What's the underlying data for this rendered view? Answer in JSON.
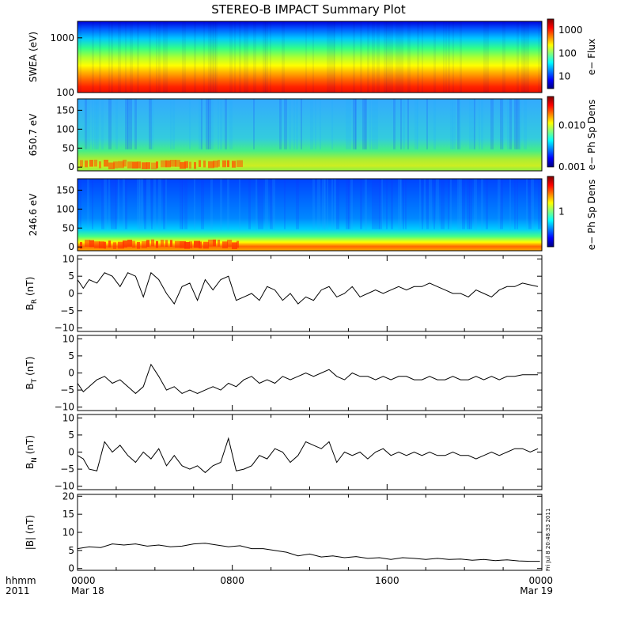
{
  "chart_data": {
    "type": "line",
    "title": "STEREO-B IMPACT Summary Plot",
    "x_label_top": "hhmm",
    "x_label_bottom": "2011",
    "x_range_hours": [
      0,
      24
    ],
    "x_ticks": [
      {
        "hour": 0,
        "label": "0000",
        "date": "Mar 18"
      },
      {
        "hour": 8,
        "label": "0800",
        "date": ""
      },
      {
        "hour": 16,
        "label": "1600",
        "date": ""
      },
      {
        "hour": 24,
        "label": "0000",
        "date": "Mar 19"
      }
    ],
    "timestamp": "Fri Jul  8 20:48:33 2011",
    "spectrograms": [
      {
        "ylabel": "SWEA (eV)",
        "y_scale": "log",
        "y_range": [
          100,
          2000
        ],
        "y_ticks": [
          {
            "value": 100,
            "label": "100"
          },
          {
            "value": 1000,
            "label": "1000"
          }
        ],
        "colorbar_label": "e− Flux",
        "colorbar_scale": "log",
        "colorbar_range": [
          3,
          3000
        ],
        "colorbar_ticks": [
          {
            "value": 10,
            "label": "10"
          },
          {
            "value": 100,
            "label": "100"
          },
          {
            "value": 1000,
            "label": "1000"
          }
        ]
      },
      {
        "ylabel": "650.7 eV",
        "y_scale": "linear",
        "y_range": [
          -10,
          180
        ],
        "y_ticks": [
          {
            "value": 0,
            "label": "0"
          },
          {
            "value": 50,
            "label": "50"
          },
          {
            "value": 100,
            "label": "100"
          },
          {
            "value": 150,
            "label": "150"
          }
        ],
        "colorbar_label": "e− Ph Sp Dens",
        "colorbar_scale": "log",
        "colorbar_range": [
          0.001,
          0.05
        ],
        "colorbar_ticks": [
          {
            "value": 0.001,
            "label": "0.001"
          },
          {
            "value": 0.01,
            "label": "0.010"
          }
        ]
      },
      {
        "ylabel": "246.6 eV",
        "y_scale": "linear",
        "y_range": [
          -10,
          180
        ],
        "y_ticks": [
          {
            "value": 0,
            "label": "0"
          },
          {
            "value": 50,
            "label": "50"
          },
          {
            "value": 100,
            "label": "100"
          },
          {
            "value": 150,
            "label": "150"
          }
        ],
        "colorbar_label": "e− Ph Sp Dens",
        "colorbar_scale": "log",
        "colorbar_range": [
          0.1,
          10
        ],
        "colorbar_ticks": [
          {
            "value": 1,
            "label": "1"
          }
        ]
      }
    ],
    "line_panels": [
      {
        "name": "BR",
        "label_main": "B",
        "label_sub": "R",
        "label_unit": " (nT)",
        "y_range": [
          -11,
          11
        ],
        "y_ticks": [
          {
            "value": -10,
            "label": "−10"
          },
          {
            "value": -5,
            "label": "−5"
          },
          {
            "value": 0,
            "label": "0"
          },
          {
            "value": 5,
            "label": "5"
          },
          {
            "value": 10,
            "label": "10"
          }
        ],
        "x": [
          0,
          0.3,
          0.6,
          1,
          1.4,
          1.8,
          2.2,
          2.6,
          3,
          3.4,
          3.8,
          4.2,
          4.6,
          5,
          5.4,
          5.8,
          6.2,
          6.6,
          7,
          7.4,
          7.8,
          8.2,
          8.6,
          9,
          9.4,
          9.8,
          10.2,
          10.6,
          11,
          11.4,
          11.8,
          12.2,
          12.6,
          13,
          13.4,
          13.8,
          14.2,
          14.6,
          15,
          15.4,
          15.8,
          16.2,
          16.6,
          17,
          17.4,
          17.8,
          18.2,
          18.6,
          19,
          19.4,
          19.8,
          20.2,
          20.6,
          21,
          21.4,
          21.8,
          22.2,
          22.6,
          23,
          23.4,
          23.8
        ],
        "values": [
          4,
          1.5,
          4,
          3,
          6,
          5,
          2,
          6,
          5,
          -1,
          6,
          4,
          0,
          -3,
          2,
          3,
          -2,
          4,
          1,
          4,
          5,
          -2,
          -1,
          0,
          -2,
          2,
          1,
          -2,
          0,
          -3,
          -1,
          -2,
          1,
          2,
          -1,
          0,
          2,
          -1,
          0,
          1,
          0,
          1,
          2,
          1,
          2,
          2,
          3,
          2,
          1,
          0,
          0,
          -1,
          1,
          0,
          -1,
          1,
          2,
          2,
          3,
          2.5,
          2
        ]
      },
      {
        "name": "BT",
        "label_main": "B",
        "label_sub": "T",
        "label_unit": " (nT)",
        "y_range": [
          -11,
          11
        ],
        "y_ticks": [
          {
            "value": -10,
            "label": "−10"
          },
          {
            "value": -5,
            "label": "−5"
          },
          {
            "value": 0,
            "label": "0"
          },
          {
            "value": 5,
            "label": "5"
          },
          {
            "value": 10,
            "label": "10"
          }
        ],
        "x": [
          0,
          0.3,
          0.6,
          1,
          1.4,
          1.8,
          2.2,
          2.6,
          3,
          3.4,
          3.8,
          4.2,
          4.6,
          5,
          5.4,
          5.8,
          6.2,
          6.6,
          7,
          7.4,
          7.8,
          8.2,
          8.6,
          9,
          9.4,
          9.8,
          10.2,
          10.6,
          11,
          11.4,
          11.8,
          12.2,
          12.6,
          13,
          13.4,
          13.8,
          14.2,
          14.6,
          15,
          15.4,
          15.8,
          16.2,
          16.6,
          17,
          17.4,
          17.8,
          18.2,
          18.6,
          19,
          19.4,
          19.8,
          20.2,
          20.6,
          21,
          21.4,
          21.8,
          22.2,
          22.6,
          23,
          23.4,
          23.8
        ],
        "values": [
          -3,
          -5.5,
          -4,
          -2,
          -1,
          -3,
          -2,
          -4,
          -6,
          -4,
          2.5,
          -1,
          -5,
          -4,
          -6,
          -5,
          -6,
          -5,
          -4,
          -5,
          -3,
          -4,
          -2,
          -1,
          -3,
          -2,
          -3,
          -1,
          -2,
          -1,
          0,
          -1,
          0,
          1,
          -1,
          -2,
          0,
          -1,
          -1,
          -2,
          -1,
          -2,
          -1,
          -1,
          -2,
          -2,
          -1,
          -2,
          -2,
          -1,
          -2,
          -2,
          -1,
          -2,
          -1,
          -2,
          -1,
          -1,
          -0.5,
          -0.5,
          -0.5
        ]
      },
      {
        "name": "BN",
        "label_main": "B",
        "label_sub": "N",
        "label_unit": " (nT)",
        "y_range": [
          -11,
          11
        ],
        "y_ticks": [
          {
            "value": -10,
            "label": "−10"
          },
          {
            "value": -5,
            "label": "−5"
          },
          {
            "value": 0,
            "label": "0"
          },
          {
            "value": 5,
            "label": "5"
          },
          {
            "value": 10,
            "label": "10"
          }
        ],
        "x": [
          0,
          0.3,
          0.6,
          1,
          1.4,
          1.8,
          2.2,
          2.6,
          3,
          3.4,
          3.8,
          4.2,
          4.6,
          5,
          5.4,
          5.8,
          6.2,
          6.6,
          7,
          7.4,
          7.8,
          8.2,
          8.6,
          9,
          9.4,
          9.8,
          10.2,
          10.6,
          11,
          11.4,
          11.8,
          12.2,
          12.6,
          13,
          13.4,
          13.8,
          14.2,
          14.6,
          15,
          15.4,
          15.8,
          16.2,
          16.6,
          17,
          17.4,
          17.8,
          18.2,
          18.6,
          19,
          19.4,
          19.8,
          20.2,
          20.6,
          21,
          21.4,
          21.8,
          22.2,
          22.6,
          23,
          23.4,
          23.8
        ],
        "values": [
          -1,
          -2,
          -5,
          -5.5,
          3,
          0,
          2,
          -1,
          -3,
          0,
          -2,
          1,
          -4,
          -1,
          -4,
          -5,
          -4,
          -6,
          -4,
          -3,
          4,
          -5.5,
          -5,
          -4,
          -1,
          -2,
          1,
          0,
          -3,
          -1,
          3,
          2,
          1,
          3,
          -3,
          0,
          -1,
          0,
          -2,
          0,
          1,
          -1,
          0,
          -1,
          0,
          -1,
          0,
          -1,
          -1,
          0,
          -1,
          -1,
          -2,
          -1,
          0,
          -1,
          0,
          1,
          1,
          0,
          1
        ]
      },
      {
        "name": "Bmag",
        "label_main": "|B| (nT)",
        "label_sub": "",
        "label_unit": "",
        "y_range": [
          -0.5,
          20.5
        ],
        "y_ticks": [
          {
            "value": 0,
            "label": "0"
          },
          {
            "value": 5,
            "label": "5"
          },
          {
            "value": 10,
            "label": "10"
          },
          {
            "value": 15,
            "label": "15"
          },
          {
            "value": 20,
            "label": "20"
          }
        ],
        "x": [
          0,
          0.6,
          1.2,
          1.8,
          2.4,
          3,
          3.6,
          4.2,
          4.8,
          5.4,
          6,
          6.6,
          7.2,
          7.8,
          8.4,
          9,
          9.6,
          10.2,
          10.8,
          11.4,
          12,
          12.6,
          13.2,
          13.8,
          14.4,
          15,
          15.6,
          16.2,
          16.8,
          17.4,
          18,
          18.6,
          19.2,
          19.8,
          20.4,
          21,
          21.6,
          22.2,
          22.8,
          23.4,
          23.9
        ],
        "values": [
          5.5,
          6,
          5.8,
          6.8,
          6.5,
          6.8,
          6.2,
          6.5,
          6,
          6.2,
          6.8,
          7,
          6.5,
          6,
          6.3,
          5.5,
          5.5,
          5,
          4.5,
          3.5,
          4,
          3.2,
          3.5,
          3,
          3.3,
          2.8,
          3,
          2.5,
          3,
          2.8,
          2.5,
          2.8,
          2.5,
          2.6,
          2.3,
          2.5,
          2.2,
          2.4,
          2.1,
          2,
          2
        ]
      }
    ]
  }
}
